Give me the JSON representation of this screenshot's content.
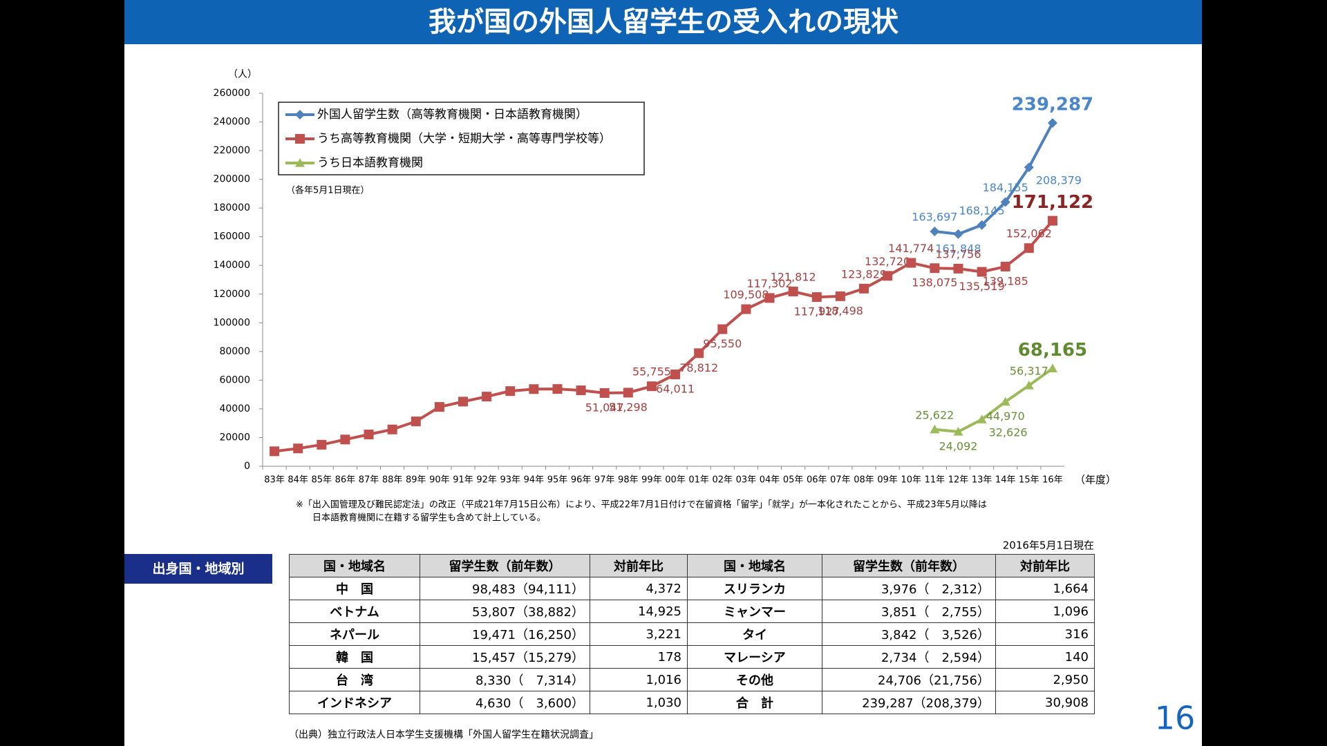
{
  "header": {
    "title": "我が国の外国人留学生の受入れの現状"
  },
  "chart_data": {
    "type": "line",
    "y_label": "（人）",
    "x_label": "（年度）",
    "note": "（各年5月1日現在）",
    "categories": [
      "83年",
      "84年",
      "85年",
      "86年",
      "87年",
      "88年",
      "89年",
      "90年",
      "91年",
      "92年",
      "93年",
      "94年",
      "95年",
      "96年",
      "97年",
      "98年",
      "99年",
      "00年",
      "01年",
      "02年",
      "03年",
      "04年",
      "05年",
      "06年",
      "07年",
      "08年",
      "09年",
      "10年",
      "11年",
      "12年",
      "13年",
      "14年",
      "15年",
      "16年"
    ],
    "ylim": [
      0,
      260000
    ],
    "yticks": [
      0,
      20000,
      40000,
      60000,
      80000,
      100000,
      120000,
      140000,
      160000,
      180000,
      200000,
      220000,
      240000,
      260000
    ],
    "grid": false,
    "series": [
      {
        "name": "外国人留学生数（高等教育機関・日本語教育機関）",
        "color": "#4f81bd",
        "marker": "diamond",
        "values": [
          null,
          null,
          null,
          null,
          null,
          null,
          null,
          null,
          null,
          null,
          null,
          null,
          null,
          null,
          null,
          null,
          null,
          null,
          null,
          null,
          null,
          null,
          null,
          null,
          null,
          null,
          null,
          null,
          163697,
          161848,
          168145,
          184155,
          208379,
          239287
        ],
        "value_labels": [
          null,
          null,
          null,
          null,
          null,
          null,
          null,
          null,
          null,
          null,
          null,
          null,
          null,
          null,
          null,
          null,
          null,
          null,
          null,
          null,
          null,
          null,
          null,
          null,
          null,
          null,
          null,
          null,
          "163,697",
          "161,848",
          "168,145",
          "184,155",
          "208,379",
          "239,287"
        ]
      },
      {
        "name": "うち高等教育機関（大学・短期大学・高等専門学校等）",
        "color": "#c0504d",
        "marker": "square",
        "values": [
          10428,
          12410,
          15009,
          18631,
          22154,
          25643,
          31251,
          41347,
          45066,
          48561,
          52405,
          53787,
          53847,
          52921,
          51047,
          51298,
          55755,
          64011,
          78812,
          95550,
          109508,
          117302,
          121812,
          117927,
          118498,
          123829,
          132720,
          141774,
          138075,
          137756,
          135519,
          139185,
          152062,
          171122
        ],
        "value_labels": [
          null,
          null,
          null,
          null,
          null,
          null,
          null,
          null,
          null,
          null,
          null,
          null,
          null,
          null,
          "51,047",
          "51,298",
          "55,755",
          "64,011",
          "78,812",
          "95,550",
          "109,508",
          "117,302",
          "121,812",
          "117,927",
          "118,498",
          "123,829",
          "132,720",
          "141,774",
          "138,075",
          "137,756",
          "135,519",
          "139,185",
          "152,062",
          "171,122"
        ]
      },
      {
        "name": "うち日本語教育機関",
        "color": "#9bbb59",
        "marker": "triangle",
        "values": [
          null,
          null,
          null,
          null,
          null,
          null,
          null,
          null,
          null,
          null,
          null,
          null,
          null,
          null,
          null,
          null,
          null,
          null,
          null,
          null,
          null,
          null,
          null,
          null,
          null,
          null,
          null,
          null,
          25622,
          24092,
          32626,
          44970,
          56317,
          68165
        ],
        "value_labels": [
          null,
          null,
          null,
          null,
          null,
          null,
          null,
          null,
          null,
          null,
          null,
          null,
          null,
          null,
          null,
          null,
          null,
          null,
          null,
          null,
          null,
          null,
          null,
          null,
          null,
          null,
          null,
          null,
          "25,622",
          "24,092",
          "32,626",
          "44,970",
          "56,317",
          "68,165"
        ]
      }
    ]
  },
  "notes": [
    "※「出入国管理及び難民認定法」の改正（平成21年7月15日公布）により、平成22年7月1日付けで在留資格「留学」「就学」が一本化されたことから、平成23年5月以降は",
    "日本語教育機関に在籍する留学生も含めて計上している。"
  ],
  "table": {
    "label": "出身国・地域別",
    "date": "2016年5月1日現在",
    "header": [
      "国・地域名",
      "留学生数（前年数）",
      "対前年比",
      "国・地域名",
      "留学生数（前年数）",
      "対前年比"
    ],
    "rows": [
      [
        "中　国",
        "98,483（94,111）",
        "4,372",
        "スリランカ",
        "3,976（　2,312）",
        "1,664"
      ],
      [
        "ベトナム",
        "53,807（38,882）",
        "14,925",
        "ミャンマー",
        "3,851（　2,755）",
        "1,096"
      ],
      [
        "ネパール",
        "19,471（16,250）",
        "3,221",
        "タイ",
        "3,842（　3,526）",
        "316"
      ],
      [
        "韓　国",
        "15,457（15,279）",
        "178",
        "マレーシア",
        "2,734（　2,594）",
        "140"
      ],
      [
        "台　湾",
        "8,330（　7,314）",
        "1,016",
        "その他",
        "24,706（21,756）",
        "2,950"
      ],
      [
        "インドネシア",
        "4,630（　3,600）",
        "1,030",
        "合　計",
        "239,287（208,379）",
        "30,908"
      ]
    ]
  },
  "source": "（出典）独立行政法人日本学生支援機構「外国人留学生在籍状況調査」",
  "page_number": "16"
}
